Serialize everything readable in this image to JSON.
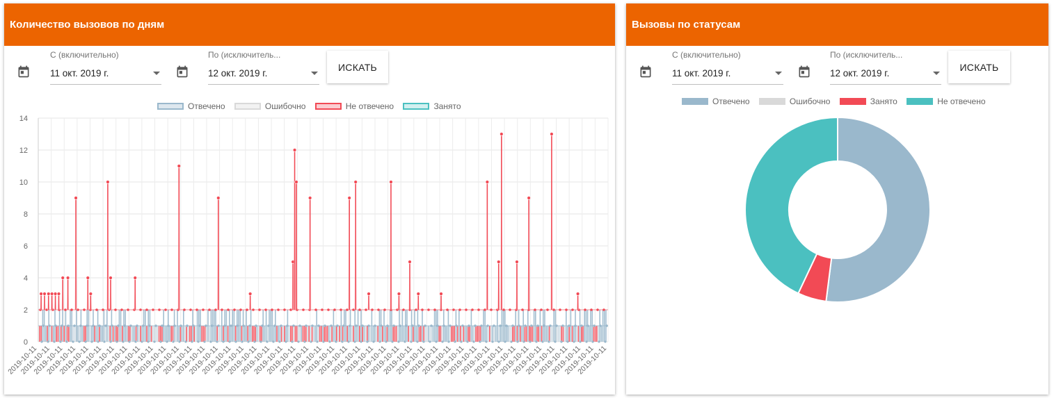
{
  "left_card": {
    "title": "Количество вызовов по дням",
    "from_label": "С (включительно)",
    "from_value": "11 окт. 2019 г.",
    "to_label": "По (исключитель...",
    "to_value": "12 окт. 2019 г.",
    "search_label": "ИСКАТЬ",
    "icons": {
      "calendar": "calendar-icon",
      "dropdown": "chevron-down-icon"
    }
  },
  "right_card": {
    "title": "Вызовы по статусам",
    "from_label": "С (включительно)",
    "from_value": "11 окт. 2019 г.",
    "to_label": "По (исключитель...",
    "to_value": "12 окт. 2019 г.",
    "search_label": "ИСКАТЬ",
    "icons": {
      "calendar": "calendar-icon",
      "dropdown": "chevron-down-icon"
    }
  },
  "chart_data": [
    {
      "type": "line",
      "title": "",
      "xlabel": "",
      "ylabel": "",
      "ylim": [
        0,
        14
      ],
      "yticks": [
        0,
        2,
        4,
        6,
        8,
        10,
        12,
        14
      ],
      "grid": true,
      "legend_position": "top",
      "x_tick_label": "2019-10-11",
      "x_tick_count": 45,
      "series_labels": [
        "Отвечено",
        "Ошибочно",
        "Не отвечено",
        "Занято"
      ],
      "series_colors": [
        "#9ab8cc",
        "#d9d9d9",
        "#f24a55",
        "#4bc0c0"
      ],
      "spikes": [
        {
          "pos": 0.005,
          "value": 3
        },
        {
          "pos": 0.011,
          "value": 3
        },
        {
          "pos": 0.018,
          "value": 3
        },
        {
          "pos": 0.024,
          "value": 3
        },
        {
          "pos": 0.03,
          "value": 3
        },
        {
          "pos": 0.036,
          "value": 3
        },
        {
          "pos": 0.043,
          "value": 4
        },
        {
          "pos": 0.052,
          "value": 4
        },
        {
          "pos": 0.066,
          "value": 9
        },
        {
          "pos": 0.087,
          "value": 4
        },
        {
          "pos": 0.092,
          "value": 3
        },
        {
          "pos": 0.122,
          "value": 10
        },
        {
          "pos": 0.127,
          "value": 4
        },
        {
          "pos": 0.17,
          "value": 4
        },
        {
          "pos": 0.247,
          "value": 11
        },
        {
          "pos": 0.316,
          "value": 9
        },
        {
          "pos": 0.372,
          "value": 3
        },
        {
          "pos": 0.447,
          "value": 5
        },
        {
          "pos": 0.45,
          "value": 12
        },
        {
          "pos": 0.453,
          "value": 10
        },
        {
          "pos": 0.477,
          "value": 9
        },
        {
          "pos": 0.546,
          "value": 9
        },
        {
          "pos": 0.557,
          "value": 10
        },
        {
          "pos": 0.58,
          "value": 3
        },
        {
          "pos": 0.619,
          "value": 10
        },
        {
          "pos": 0.633,
          "value": 3
        },
        {
          "pos": 0.652,
          "value": 5
        },
        {
          "pos": 0.667,
          "value": 3
        },
        {
          "pos": 0.707,
          "value": 3
        },
        {
          "pos": 0.788,
          "value": 10
        },
        {
          "pos": 0.808,
          "value": 5
        },
        {
          "pos": 0.813,
          "value": 13
        },
        {
          "pos": 0.84,
          "value": 5
        },
        {
          "pos": 0.861,
          "value": 9
        },
        {
          "pos": 0.901,
          "value": 13
        },
        {
          "pos": 0.947,
          "value": 3
        }
      ]
    },
    {
      "type": "pie",
      "title": "",
      "legend_position": "top",
      "labels": [
        "Отвечено",
        "Ошибочно",
        "Занято",
        "Не отвечено"
      ],
      "values": [
        52,
        0,
        5,
        43
      ],
      "colors": [
        "#9ab8cc",
        "#d9d9d9",
        "#f24a55",
        "#4bc0c0"
      ],
      "donut": true
    }
  ]
}
